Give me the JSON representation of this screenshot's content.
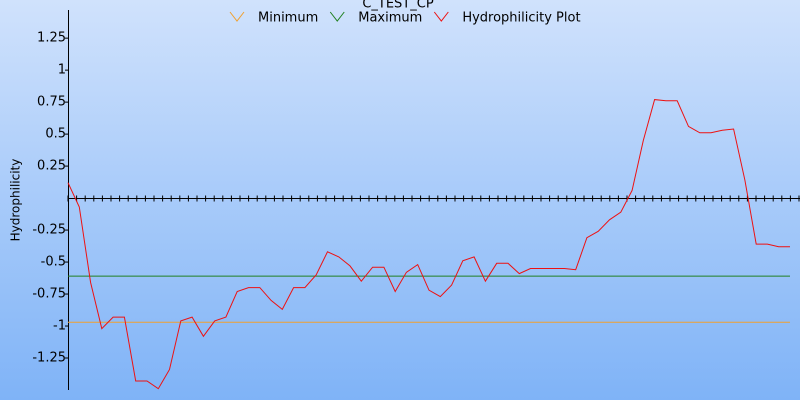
{
  "chart_data": {
    "type": "line",
    "title": "C_TEST_CP",
    "y_label": "Hydrophilicity",
    "ylim": [
      -1.5,
      1.47
    ],
    "yticks": [
      -1.25,
      -1,
      -0.75,
      -0.5,
      -0.25,
      0.25,
      0.5,
      0.75,
      1,
      1.25
    ],
    "series": [
      {
        "name": "Minimum",
        "color": "#f0a030",
        "values": [
          -0.97,
          -0.97
        ]
      },
      {
        "name": "Maximum",
        "color": "#208020",
        "values": [
          -0.61,
          -0.61
        ]
      },
      {
        "name": "Hydrophilicity Plot",
        "color": "#ee1111",
        "values": [
          0.12,
          -0.07,
          -0.66,
          -1.02,
          -0.93,
          -0.93,
          -1.43,
          -1.43,
          -1.49,
          -1.34,
          -0.96,
          -0.93,
          -1.08,
          -0.96,
          -0.93,
          -0.73,
          -0.7,
          -0.7,
          -0.8,
          -0.87,
          -0.7,
          -0.7,
          -0.6,
          -0.42,
          -0.46,
          -0.53,
          -0.65,
          -0.54,
          -0.54,
          -0.73,
          -0.58,
          -0.52,
          -0.72,
          -0.77,
          -0.68,
          -0.49,
          -0.46,
          -0.65,
          -0.51,
          -0.51,
          -0.59,
          -0.55,
          -0.55,
          -0.55,
          -0.55,
          -0.56,
          -0.31,
          -0.26,
          -0.17,
          -0.11,
          0.06,
          0.45,
          0.77,
          0.76,
          0.76,
          0.56,
          0.51,
          0.51,
          0.53,
          0.54,
          0.14,
          -0.36,
          -0.36,
          -0.38,
          -0.38
        ]
      }
    ]
  }
}
